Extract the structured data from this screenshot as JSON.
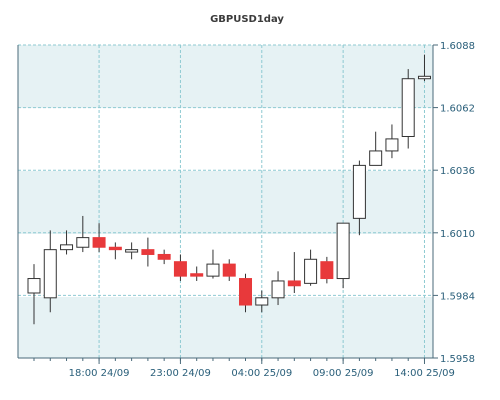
{
  "chart_data": {
    "type": "candlestick",
    "title": "GBPUSD1day",
    "ylim": [
      1.5958,
      1.6088
    ],
    "y_ticks": [
      "1.6088",
      "1.6062",
      "1.6036",
      "1.6010",
      "1.5984",
      "1.5958"
    ],
    "x_ticks": [
      "18:00 24/09",
      "23:00 24/09",
      "04:00 25/09",
      "09:00 25/09",
      "14:00 25/09"
    ],
    "grid": true,
    "colors": {
      "background": "#ffffff",
      "band": "#e6f2f4",
      "frame": "#4a6a7a",
      "grid": "#8ecad2",
      "up_body": "#ffffff",
      "down_body": "#e8393b",
      "wick": "#333333"
    },
    "candles": [
      {
        "open": 1.5985,
        "high": 1.5997,
        "low": 1.5972,
        "close": 1.5991
      },
      {
        "open": 1.5983,
        "high": 1.6011,
        "low": 1.5977,
        "close": 1.6003
      },
      {
        "open": 1.6003,
        "high": 1.6011,
        "low": 1.6001,
        "close": 1.6005
      },
      {
        "open": 1.6004,
        "high": 1.6017,
        "low": 1.6002,
        "close": 1.6008
      },
      {
        "open": 1.6008,
        "high": 1.6014,
        "low": 1.6002,
        "close": 1.6004
      },
      {
        "open": 1.6004,
        "high": 1.6006,
        "low": 1.5999,
        "close": 1.6003
      },
      {
        "open": 1.6002,
        "high": 1.6006,
        "low": 1.5999,
        "close": 1.6003
      },
      {
        "open": 1.6003,
        "high": 1.6008,
        "low": 1.5996,
        "close": 1.6001
      },
      {
        "open": 1.6001,
        "high": 1.6003,
        "low": 1.5997,
        "close": 1.5999
      },
      {
        "open": 1.5998,
        "high": 1.6001,
        "low": 1.599,
        "close": 1.5992
      },
      {
        "open": 1.5993,
        "high": 1.5996,
        "low": 1.599,
        "close": 1.5992
      },
      {
        "open": 1.5992,
        "high": 1.6003,
        "low": 1.5991,
        "close": 1.5997
      },
      {
        "open": 1.5997,
        "high": 1.5999,
        "low": 1.599,
        "close": 1.5992
      },
      {
        "open": 1.5991,
        "high": 1.5993,
        "low": 1.5977,
        "close": 1.598
      },
      {
        "open": 1.598,
        "high": 1.5986,
        "low": 1.5977,
        "close": 1.5983
      },
      {
        "open": 1.5983,
        "high": 1.5994,
        "low": 1.598,
        "close": 1.599
      },
      {
        "open": 1.599,
        "high": 1.6002,
        "low": 1.5985,
        "close": 1.5988
      },
      {
        "open": 1.5989,
        "high": 1.6003,
        "low": 1.5988,
        "close": 1.5999
      },
      {
        "open": 1.5998,
        "high": 1.6,
        "low": 1.5989,
        "close": 1.5991
      },
      {
        "open": 1.5991,
        "high": 1.6014,
        "low": 1.5987,
        "close": 1.6014
      },
      {
        "open": 1.6016,
        "high": 1.604,
        "low": 1.6009,
        "close": 1.6038
      },
      {
        "open": 1.6038,
        "high": 1.6052,
        "low": 1.6038,
        "close": 1.6044
      },
      {
        "open": 1.6044,
        "high": 1.6055,
        "low": 1.6041,
        "close": 1.6049
      },
      {
        "open": 1.605,
        "high": 1.6078,
        "low": 1.6045,
        "close": 1.6074
      },
      {
        "open": 1.6074,
        "high": 1.6084,
        "low": 1.6073,
        "close": 1.6075
      }
    ]
  }
}
